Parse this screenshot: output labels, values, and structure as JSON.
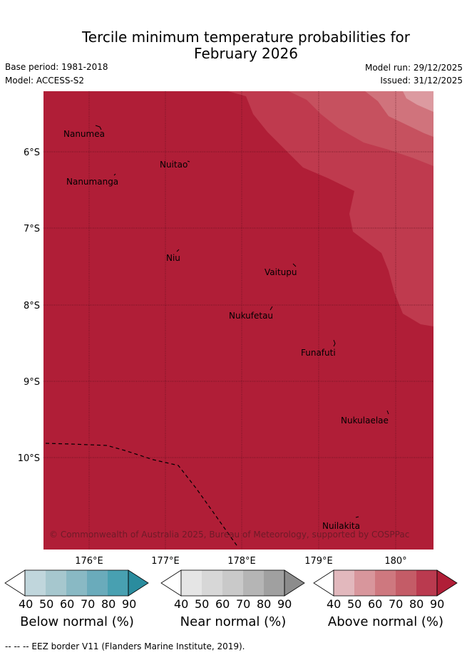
{
  "title": {
    "line1": "Tercile minimum temperature probabilities for",
    "line2": "February 2026"
  },
  "meta": {
    "base_period": "Base period: 1981-2018",
    "model": "Model: ACCESS-S2",
    "model_run": "Model run: 29/12/2025",
    "issued": "Issued: 31/12/2025"
  },
  "map": {
    "lon_labels": [
      "176°E",
      "177°E",
      "178°E",
      "179°E",
      "180°"
    ],
    "lat_labels": [
      "6°S",
      "7°S",
      "8°S",
      "9°S",
      "10°S"
    ],
    "places": [
      {
        "name": "Nanumea"
      },
      {
        "name": "Nuitao"
      },
      {
        "name": "Nanumanga"
      },
      {
        "name": "Niu"
      },
      {
        "name": "Vaitupu"
      },
      {
        "name": "Nukufetau"
      },
      {
        "name": "Funafuti"
      },
      {
        "name": "Nukulaelae"
      },
      {
        "name": "Nuilakita"
      }
    ],
    "credit": "© Commonwealth of Australia 2025, Bureau of Meteorology, supported by COSPPac",
    "colors": {
      "above_90": "#b01e37",
      "above_80": "#bf3a4e",
      "above_70": "#c6515f",
      "above_60": "#d0737c",
      "above_50": "#dc9aa0"
    }
  },
  "colorbars": [
    {
      "title": "Below normal (%)",
      "ticks": [
        "40",
        "50",
        "60",
        "70",
        "80",
        "90"
      ],
      "colors": [
        "#c0d6dc",
        "#a6c7ce",
        "#89b9c4",
        "#6aabbb",
        "#48a0b1",
        "#2a8c9e"
      ]
    },
    {
      "title": "Near normal (%)",
      "ticks": [
        "40",
        "50",
        "60",
        "70",
        "80",
        "90"
      ],
      "colors": [
        "#e5e5e5",
        "#d7d7d7",
        "#c9c9c9",
        "#b5b5b5",
        "#a0a0a0",
        "#8c8c8c"
      ]
    },
    {
      "title": "Above normal (%)",
      "ticks": [
        "40",
        "50",
        "60",
        "70",
        "80",
        "90"
      ],
      "colors": [
        "#e2b8bd",
        "#d8969c",
        "#ce787f",
        "#c45c67",
        "#ba3a4f",
        "#b01e37"
      ]
    }
  ],
  "footnote": "-- -- -- EEZ border V11 (Flanders Marine Institute, 2019)."
}
